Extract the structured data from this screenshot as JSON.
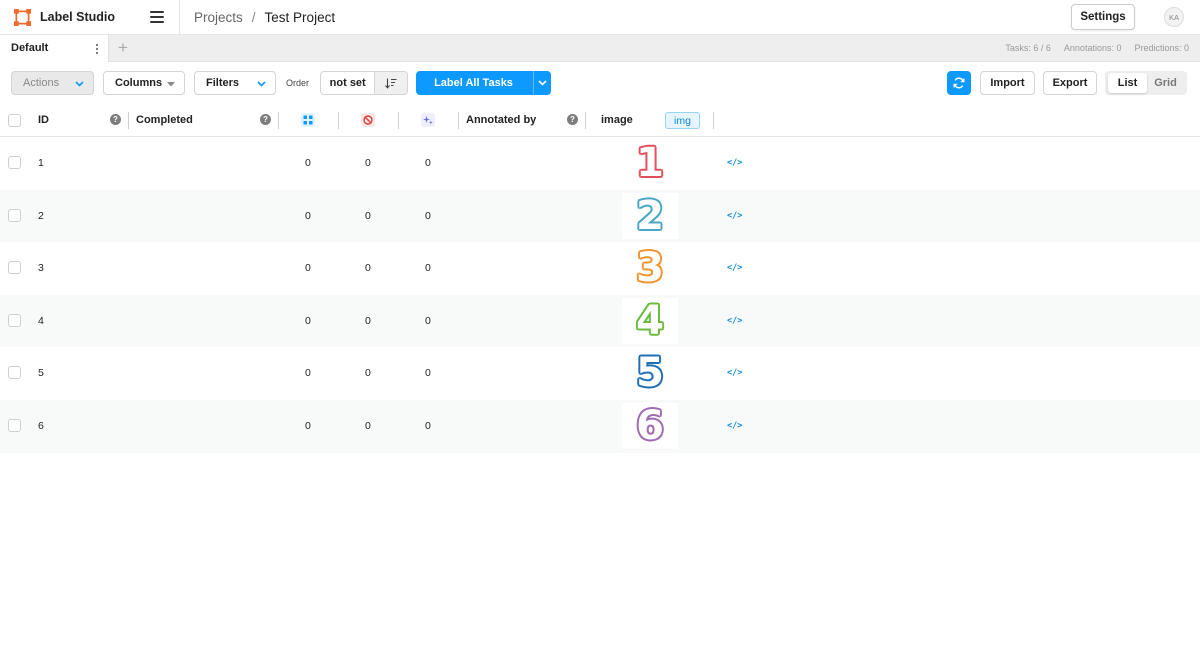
{
  "app": {
    "name": "Label Studio",
    "brand_color": "#f06a2d"
  },
  "breadcrumb": {
    "projects": "Projects",
    "separator": "/",
    "current": "Test Project"
  },
  "header": {
    "settings_label": "Settings",
    "avatar_initials": "KA"
  },
  "tabs": [
    {
      "label": "Default",
      "active": true
    }
  ],
  "stats": {
    "tasks": "Tasks: 6 / 6",
    "annotations": "Annotations: 0",
    "predictions": "Predictions: 0"
  },
  "toolbar": {
    "actions_label": "Actions",
    "columns_label": "Columns",
    "filters_label": "Filters",
    "order_label": "Order",
    "order_value": "not set",
    "label_all_label": "Label All Tasks",
    "import_label": "Import",
    "export_label": "Export",
    "view_list": "List",
    "view_grid": "Grid",
    "accent_color": "#0d99ff"
  },
  "table": {
    "headers": {
      "id": "ID",
      "completed": "Completed",
      "annotated_by": "Annotated by",
      "image": "image",
      "image_badge": "img"
    },
    "rows": [
      {
        "id": "1",
        "total_annotations": "0",
        "cancelled": "0",
        "predictions": "0",
        "image_digit": "1",
        "image_color": "#e0505a"
      },
      {
        "id": "2",
        "total_annotations": "0",
        "cancelled": "0",
        "predictions": "0",
        "image_digit": "2",
        "image_color": "#4aa7c4"
      },
      {
        "id": "3",
        "total_annotations": "0",
        "cancelled": "0",
        "predictions": "0",
        "image_digit": "3",
        "image_color": "#f0962e"
      },
      {
        "id": "4",
        "total_annotations": "0",
        "cancelled": "0",
        "predictions": "0",
        "image_digit": "4",
        "image_color": "#6dbb3d"
      },
      {
        "id": "5",
        "total_annotations": "0",
        "cancelled": "0",
        "predictions": "0",
        "image_digit": "5",
        "image_color": "#1f6fb4"
      },
      {
        "id": "6",
        "total_annotations": "0",
        "cancelled": "0",
        "predictions": "0",
        "image_digit": "6",
        "image_color": "#a06ab4"
      }
    ],
    "source_icon_text": "</>"
  }
}
